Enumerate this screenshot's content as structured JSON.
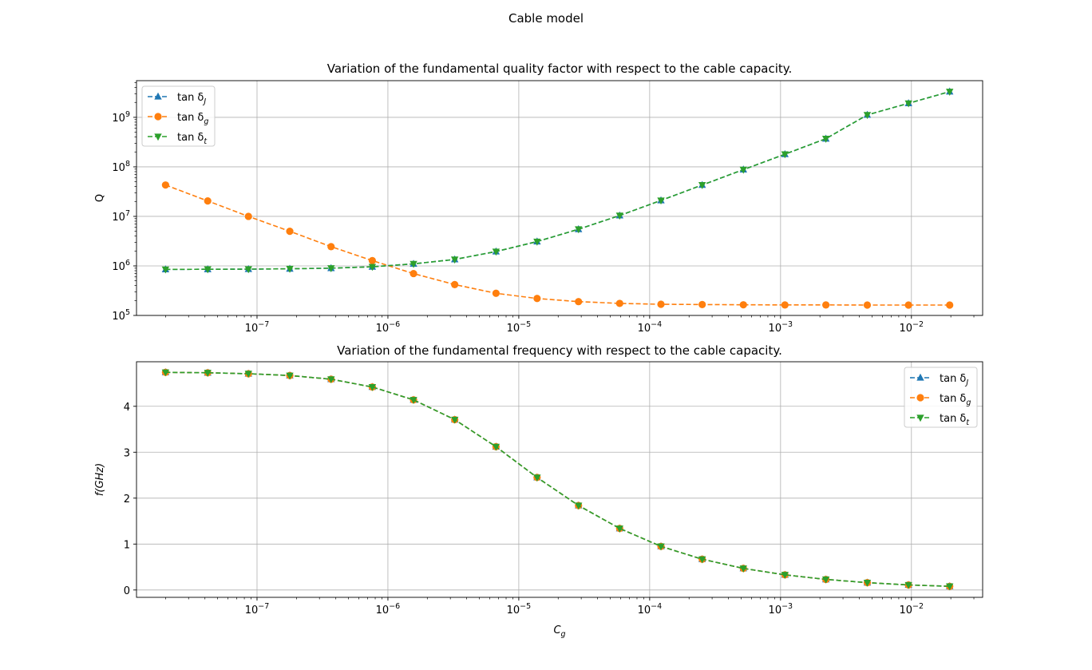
{
  "figure_title": "Cable model",
  "chart_data": [
    {
      "type": "line",
      "title": "Variation of the fundamental quality factor with respect to the cable capacity.",
      "xlabel": "",
      "ylabel": "Q",
      "xscale": "log",
      "yscale": "log",
      "xlim": [
        1.2e-08,
        0.035
      ],
      "ylim": [
        100000.0,
        5500000000.0
      ],
      "xticks": [
        {
          "value": 1e-07,
          "base": "10",
          "exp": "−7"
        },
        {
          "value": 1e-06,
          "base": "10",
          "exp": "−6"
        },
        {
          "value": 1e-05,
          "base": "10",
          "exp": "−5"
        },
        {
          "value": 0.0001,
          "base": "10",
          "exp": "−4"
        },
        {
          "value": 0.001,
          "base": "10",
          "exp": "−3"
        },
        {
          "value": 0.01,
          "base": "10",
          "exp": "−2"
        }
      ],
      "yticks": [
        {
          "value": 100000.0,
          "base": "10",
          "exp": "5"
        },
        {
          "value": 1000000.0,
          "base": "10",
          "exp": "6"
        },
        {
          "value": 10000000.0,
          "base": "10",
          "exp": "7"
        },
        {
          "value": 100000000.0,
          "base": "10",
          "exp": "8"
        },
        {
          "value": 1000000000.0,
          "base": "10",
          "exp": "9"
        }
      ],
      "grid": true,
      "legend": "top-left",
      "x": [
        2e-08,
        4.2e-08,
        8.6e-08,
        1.78e-07,
        3.68e-07,
        7.6e-07,
        1.57e-06,
        3.24e-06,
        6.7e-06,
        1.38e-05,
        2.86e-05,
        5.9e-05,
        0.000122,
        0.000252,
        0.00052,
        0.00108,
        0.00222,
        0.0046,
        0.0095,
        0.0196
      ],
      "series": [
        {
          "name": "tan δJ",
          "base": "tan δ",
          "sub": "J",
          "color": "#1f77b4",
          "marker": "triangle-up",
          "values": [
            850000.0,
            855000.0,
            860000.0,
            875000.0,
            900000.0,
            960000.0,
            1100000.0,
            1350000.0,
            1950000.0,
            3100000.0,
            5500000.0,
            10400000.0,
            21000000.0,
            43000000.0,
            88000000.0,
            180000000.0,
            370000000.0,
            1120000000.0,
            1920000000.0,
            3300000000.0
          ]
        },
        {
          "name": "tan δg",
          "base": "tan δ",
          "sub": "g",
          "color": "#ff7f0e",
          "marker": "circle",
          "values": [
            43000000.0,
            20500000.0,
            10000000.0,
            5000000.0,
            2450000.0,
            1280000.0,
            700000.0,
            420000.0,
            280000.0,
            220000.0,
            190000.0,
            175000.0,
            168000.0,
            166000.0,
            164000.0,
            163000.0,
            163000.0,
            162000.0,
            162000.0,
            162000.0
          ]
        },
        {
          "name": "tan δt",
          "base": "tan δ",
          "sub": "t",
          "color": "#2ca02c",
          "marker": "triangle-down",
          "values": [
            850000.0,
            855000.0,
            860000.0,
            875000.0,
            900000.0,
            960000.0,
            1100000.0,
            1350000.0,
            1950000.0,
            3100000.0,
            5500000.0,
            10400000.0,
            21000000.0,
            43000000.0,
            88000000.0,
            180000000.0,
            370000000.0,
            1120000000.0,
            1920000000.0,
            3300000000.0
          ]
        }
      ]
    },
    {
      "type": "line",
      "title": "Variation of the fundamental frequency with respect to the cable capacity.",
      "xlabel": "Cg",
      "xlabel_base": "C",
      "xlabel_sub": "g",
      "ylabel": "f(GHz)",
      "xscale": "log",
      "yscale": "linear",
      "xlim": [
        1.2e-08,
        0.035
      ],
      "ylim": [
        -0.16,
        4.97
      ],
      "xticks": [
        {
          "value": 1e-07,
          "base": "10",
          "exp": "−7"
        },
        {
          "value": 1e-06,
          "base": "10",
          "exp": "−6"
        },
        {
          "value": 1e-05,
          "base": "10",
          "exp": "−5"
        },
        {
          "value": 0.0001,
          "base": "10",
          "exp": "−4"
        },
        {
          "value": 0.001,
          "base": "10",
          "exp": "−3"
        },
        {
          "value": 0.01,
          "base": "10",
          "exp": "−2"
        }
      ],
      "yticks": [
        {
          "value": 0,
          "label": "0"
        },
        {
          "value": 1,
          "label": "1"
        },
        {
          "value": 2,
          "label": "2"
        },
        {
          "value": 3,
          "label": "3"
        },
        {
          "value": 4,
          "label": "4"
        }
      ],
      "grid": true,
      "legend": "top-right",
      "x": [
        2e-08,
        4.2e-08,
        8.6e-08,
        1.78e-07,
        3.68e-07,
        7.6e-07,
        1.57e-06,
        3.24e-06,
        6.7e-06,
        1.38e-05,
        2.86e-05,
        5.9e-05,
        0.000122,
        0.000252,
        0.00052,
        0.00108,
        0.00222,
        0.0046,
        0.0095,
        0.0196
      ],
      "series": [
        {
          "name": "tan δJ",
          "base": "tan δ",
          "sub": "J",
          "color": "#1f77b4",
          "marker": "triangle-up",
          "values": [
            4.74,
            4.73,
            4.71,
            4.67,
            4.59,
            4.42,
            4.14,
            3.71,
            3.12,
            2.45,
            1.84,
            1.34,
            0.95,
            0.67,
            0.47,
            0.33,
            0.23,
            0.16,
            0.11,
            0.08
          ]
        },
        {
          "name": "tan δg",
          "base": "tan δ",
          "sub": "g",
          "color": "#ff7f0e",
          "marker": "circle",
          "values": [
            4.74,
            4.73,
            4.71,
            4.67,
            4.59,
            4.42,
            4.14,
            3.71,
            3.12,
            2.45,
            1.84,
            1.34,
            0.95,
            0.67,
            0.47,
            0.33,
            0.23,
            0.16,
            0.11,
            0.08
          ]
        },
        {
          "name": "tan δt",
          "base": "tan δ",
          "sub": "t",
          "color": "#2ca02c",
          "marker": "triangle-down",
          "values": [
            4.74,
            4.73,
            4.71,
            4.67,
            4.59,
            4.42,
            4.14,
            3.71,
            3.12,
            2.45,
            1.84,
            1.34,
            0.95,
            0.67,
            0.47,
            0.33,
            0.23,
            0.16,
            0.11,
            0.08
          ]
        }
      ]
    }
  ]
}
